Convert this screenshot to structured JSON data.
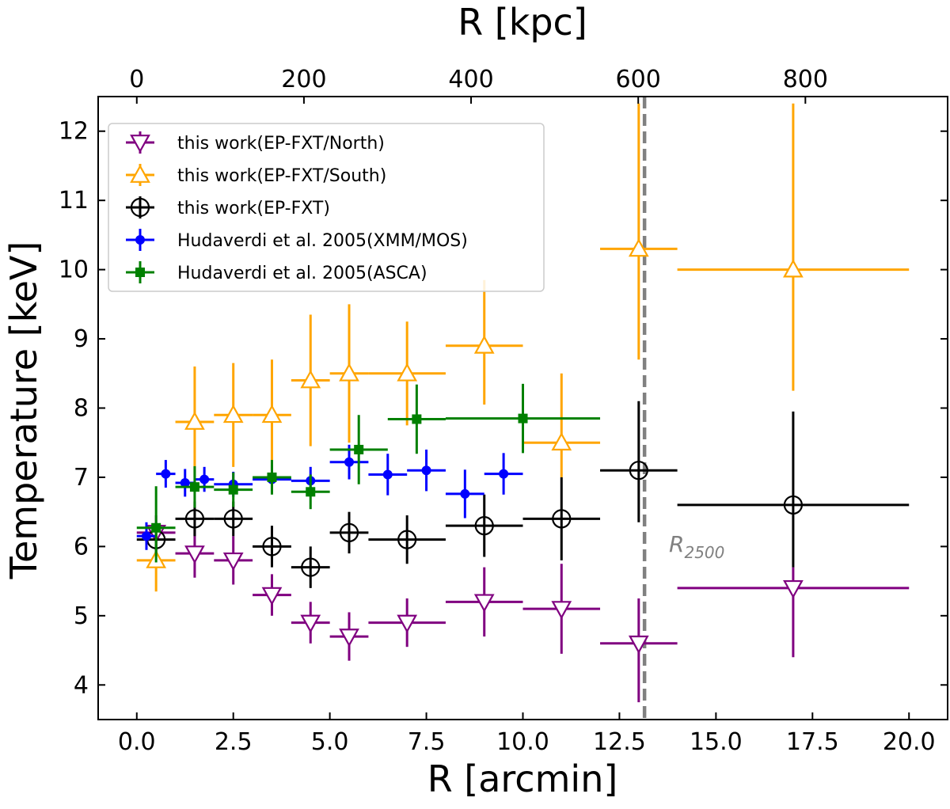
{
  "chart_data": {
    "type": "scatter",
    "title": "",
    "xlabel": "R [arcmin]",
    "ylabel": "Temperature [keV]",
    "top_xlabel": "R [kpc]",
    "xlim": [
      -1.0,
      21.0
    ],
    "ylim": [
      3.5,
      12.5
    ],
    "grid": false,
    "legend_position": "top-left",
    "x_ticks": [
      0.0,
      2.5,
      5.0,
      7.5,
      10.0,
      12.5,
      15.0,
      17.5,
      20.0
    ],
    "x_tick_labels": [
      "0.0",
      "2.5",
      "5.0",
      "7.5",
      "10.0",
      "12.5",
      "15.0",
      "17.5",
      "20.0"
    ],
    "y_ticks": [
      4,
      5,
      6,
      7,
      8,
      9,
      10,
      11,
      12
    ],
    "y_tick_labels": [
      "4",
      "5",
      "6",
      "7",
      "8",
      "9",
      "10",
      "11",
      "12"
    ],
    "top_ticks_kpc": [
      0,
      200,
      400,
      600,
      800
    ],
    "top_tick_labels": [
      "0",
      "200",
      "400",
      "600",
      "800"
    ],
    "kpc_per_arcmin": 46.2,
    "r2500": {
      "x": 13.15,
      "label": "R",
      "label_sub": "2500",
      "color": "#808080"
    },
    "series": [
      {
        "name": "this work(EP-FXT/North)",
        "color": "#800080",
        "marker": "triangle-down",
        "filled": false,
        "points": [
          {
            "x": 0.5,
            "xerr": 0.5,
            "y": 6.2,
            "yerr": [
              0.25,
              0.25
            ]
          },
          {
            "x": 1.5,
            "xerr": 0.5,
            "y": 5.9,
            "yerr": [
              0.35,
              0.35
            ]
          },
          {
            "x": 2.5,
            "xerr": 0.5,
            "y": 5.8,
            "yerr": [
              0.35,
              0.35
            ]
          },
          {
            "x": 3.5,
            "xerr": 0.5,
            "y": 5.3,
            "yerr": [
              0.3,
              0.3
            ]
          },
          {
            "x": 4.5,
            "xerr": 0.5,
            "y": 4.9,
            "yerr": [
              0.3,
              0.3
            ]
          },
          {
            "x": 5.5,
            "xerr": 0.5,
            "y": 4.7,
            "yerr": [
              0.35,
              0.35
            ]
          },
          {
            "x": 7.0,
            "xerr": 1.0,
            "y": 4.9,
            "yerr": [
              0.35,
              0.35
            ]
          },
          {
            "x": 9.0,
            "xerr": 1.0,
            "y": 5.2,
            "yerr": [
              0.5,
              0.5
            ]
          },
          {
            "x": 11.0,
            "xerr": 1.0,
            "y": 5.1,
            "yerr": [
              0.65,
              0.65
            ]
          },
          {
            "x": 13.0,
            "xerr": 1.0,
            "y": 4.6,
            "yerr": [
              0.85,
              0.65
            ]
          },
          {
            "x": 17.0,
            "xerr": 3.0,
            "y": 5.4,
            "yerr": [
              1.0,
              0.3
            ]
          }
        ]
      },
      {
        "name": "this work(EP-FXT/South)",
        "color": "#ffa500",
        "marker": "triangle-up",
        "filled": false,
        "points": [
          {
            "x": 0.5,
            "xerr": 0.5,
            "y": 5.8,
            "yerr": [
              0.45,
              0.45
            ]
          },
          {
            "x": 1.5,
            "xerr": 0.5,
            "y": 7.8,
            "yerr": [
              0.8,
              0.8
            ]
          },
          {
            "x": 2.5,
            "xerr": 0.5,
            "y": 7.9,
            "yerr": [
              0.75,
              0.75
            ]
          },
          {
            "x": 3.5,
            "xerr": 0.5,
            "y": 7.9,
            "yerr": [
              0.8,
              0.8
            ]
          },
          {
            "x": 4.5,
            "xerr": 0.5,
            "y": 8.4,
            "yerr": [
              0.95,
              0.95
            ]
          },
          {
            "x": 5.5,
            "xerr": 0.5,
            "y": 8.5,
            "yerr": [
              1.0,
              1.0
            ]
          },
          {
            "x": 7.0,
            "xerr": 1.0,
            "y": 8.5,
            "yerr": [
              0.75,
              0.75
            ]
          },
          {
            "x": 9.0,
            "xerr": 1.0,
            "y": 8.9,
            "yerr": [
              0.85,
              0.95
            ]
          },
          {
            "x": 11.0,
            "xerr": 1.0,
            "y": 7.5,
            "yerr": [
              0.5,
              1.0
            ]
          },
          {
            "x": 13.0,
            "xerr": 1.0,
            "y": 10.3,
            "yerr": [
              1.6,
              2.1
            ]
          },
          {
            "x": 17.0,
            "xerr": 3.0,
            "y": 10.0,
            "yerr": [
              1.75,
              2.4
            ]
          }
        ]
      },
      {
        "name": "this work(EP-FXT)",
        "color": "#000000",
        "marker": "circle-plus",
        "filled": false,
        "points": [
          {
            "x": 0.5,
            "xerr": 0.5,
            "y": 6.1,
            "yerr": [
              0.2,
              0.2
            ]
          },
          {
            "x": 1.5,
            "xerr": 0.5,
            "y": 6.4,
            "yerr": [
              0.25,
              0.25
            ]
          },
          {
            "x": 2.5,
            "xerr": 0.5,
            "y": 6.4,
            "yerr": [
              0.25,
              0.25
            ]
          },
          {
            "x": 3.5,
            "xerr": 0.5,
            "y": 6.0,
            "yerr": [
              0.3,
              0.3
            ]
          },
          {
            "x": 4.5,
            "xerr": 0.5,
            "y": 5.7,
            "yerr": [
              0.3,
              0.3
            ]
          },
          {
            "x": 5.5,
            "xerr": 0.5,
            "y": 6.2,
            "yerr": [
              0.3,
              0.3
            ]
          },
          {
            "x": 7.0,
            "xerr": 1.0,
            "y": 6.1,
            "yerr": [
              0.35,
              0.35
            ]
          },
          {
            "x": 9.0,
            "xerr": 1.0,
            "y": 6.3,
            "yerr": [
              0.45,
              0.45
            ]
          },
          {
            "x": 11.0,
            "xerr": 1.0,
            "y": 6.4,
            "yerr": [
              0.6,
              0.6
            ]
          },
          {
            "x": 13.0,
            "xerr": 1.0,
            "y": 7.1,
            "yerr": [
              0.75,
              1.0
            ]
          },
          {
            "x": 17.0,
            "xerr": 3.0,
            "y": 6.6,
            "yerr": [
              0.9,
              1.35
            ]
          }
        ]
      },
      {
        "name": "Hudaverdi et al. 2005(XMM/MOS)",
        "color": "#0000ff",
        "marker": "circle",
        "filled": true,
        "points": [
          {
            "x": 0.25,
            "xerr": 0.25,
            "y": 6.15,
            "yerr": [
              0.2,
              0.2
            ]
          },
          {
            "x": 0.75,
            "xerr": 0.25,
            "y": 7.05,
            "yerr": [
              0.2,
              0.2
            ]
          },
          {
            "x": 1.25,
            "xerr": 0.25,
            "y": 6.92,
            "yerr": [
              0.2,
              0.2
            ]
          },
          {
            "x": 1.75,
            "xerr": 0.25,
            "y": 6.97,
            "yerr": [
              0.18,
              0.18
            ]
          },
          {
            "x": 2.5,
            "xerr": 0.5,
            "y": 6.9,
            "yerr": [
              0.18,
              0.18
            ]
          },
          {
            "x": 3.5,
            "xerr": 0.5,
            "y": 6.97,
            "yerr": [
              0.2,
              0.2
            ]
          },
          {
            "x": 4.5,
            "xerr": 0.5,
            "y": 6.95,
            "yerr": [
              0.2,
              0.2
            ]
          },
          {
            "x": 5.5,
            "xerr": 0.5,
            "y": 7.22,
            "yerr": [
              0.25,
              0.25
            ]
          },
          {
            "x": 6.5,
            "xerr": 0.5,
            "y": 7.04,
            "yerr": [
              0.3,
              0.3
            ]
          },
          {
            "x": 7.5,
            "xerr": 0.5,
            "y": 7.1,
            "yerr": [
              0.3,
              0.3
            ]
          },
          {
            "x": 8.5,
            "xerr": 0.5,
            "y": 6.76,
            "yerr": [
              0.35,
              0.35
            ]
          },
          {
            "x": 9.5,
            "xerr": 0.5,
            "y": 7.05,
            "yerr": [
              0.3,
              0.3
            ]
          }
        ]
      },
      {
        "name": "Hudaverdi et al. 2005(ASCA)",
        "color": "#008000",
        "marker": "square",
        "filled": true,
        "points": [
          {
            "x": 0.5,
            "xerr": 0.5,
            "y": 6.27,
            "yerr": [
              0.5,
              0.6
            ]
          },
          {
            "x": 1.5,
            "xerr": 0.5,
            "y": 6.86,
            "yerr": [
              0.3,
              0.3
            ]
          },
          {
            "x": 2.5,
            "xerr": 0.5,
            "y": 6.82,
            "yerr": [
              0.25,
              0.25
            ]
          },
          {
            "x": 3.5,
            "xerr": 0.5,
            "y": 7.0,
            "yerr": [
              0.25,
              0.25
            ]
          },
          {
            "x": 4.5,
            "xerr": 0.5,
            "y": 6.79,
            "yerr": [
              0.25,
              0.25
            ]
          },
          {
            "x": 5.75,
            "xerr": 0.75,
            "y": 7.4,
            "yerr": [
              0.5,
              0.5
            ]
          },
          {
            "x": 7.25,
            "xerr": 0.75,
            "y": 7.84,
            "yerr": [
              0.5,
              0.5
            ]
          },
          {
            "x": 10.0,
            "xerr": 2.0,
            "y": 7.85,
            "yerr": [
              0.5,
              0.5
            ]
          }
        ]
      }
    ]
  }
}
